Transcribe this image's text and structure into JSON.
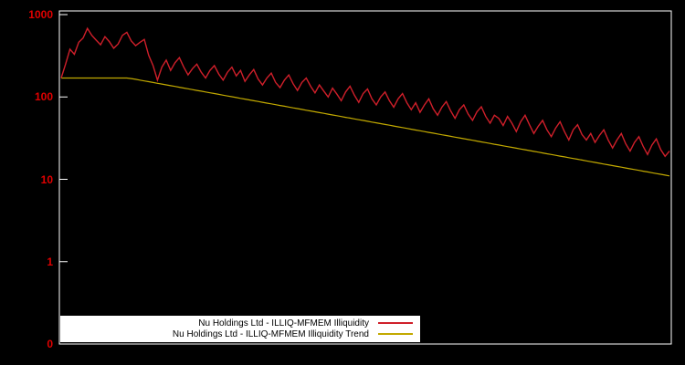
{
  "colors": {
    "background": "#000000",
    "plot_border": "#ffffff",
    "tick_text": "#e00000",
    "series_line": "#cf1f2a",
    "trend_line": "#c2a900",
    "legend_background": "#ffffff",
    "legend_text": "#000000"
  },
  "chart_data": {
    "type": "line",
    "title": "",
    "xlabel": "",
    "ylabel": "",
    "x_axis": {
      "tick_labels": []
    },
    "y_axis": {
      "scale": "log",
      "tick_labels": [
        "1000",
        "100",
        "10",
        "1",
        "0"
      ],
      "range_top": 1000,
      "range_bottom": 0.1
    },
    "grid": "off",
    "legend": {
      "position": "bottom-left",
      "entries": [
        {
          "label": "Nu Holdings Ltd - ILLIQ-MFMEM Illiquidity",
          "color": "#cf1f2a"
        },
        {
          "label": "Nu Holdings Ltd - ILLIQ-MFMEM Illiquidity Trend",
          "color": "#c2a900"
        }
      ]
    },
    "series": [
      {
        "name": "Nu Holdings Ltd - ILLIQ-MFMEM Illiquidity",
        "color": "#cf1f2a",
        "values": [
          170,
          250,
          380,
          330,
          460,
          520,
          680,
          560,
          490,
          430,
          540,
          470,
          390,
          440,
          560,
          610,
          480,
          420,
          460,
          500,
          320,
          240,
          160,
          230,
          280,
          210,
          260,
          300,
          230,
          185,
          220,
          250,
          200,
          170,
          210,
          240,
          190,
          160,
          200,
          230,
          180,
          210,
          155,
          185,
          215,
          165,
          140,
          170,
          195,
          150,
          130,
          160,
          185,
          145,
          120,
          150,
          170,
          135,
          112,
          140,
          118,
          100,
          128,
          108,
          90,
          115,
          135,
          105,
          86,
          110,
          125,
          95,
          80,
          100,
          115,
          90,
          75,
          95,
          110,
          85,
          70,
          85,
          65,
          80,
          95,
          72,
          60,
          75,
          88,
          68,
          55,
          70,
          80,
          62,
          52,
          66,
          76,
          58,
          48,
          60,
          55,
          45,
          58,
          48,
          38,
          50,
          60,
          46,
          36,
          44,
          52,
          40,
          33,
          42,
          50,
          38,
          30,
          40,
          46,
          35,
          30,
          36,
          28,
          34,
          40,
          30,
          24,
          30,
          36,
          27,
          22,
          28,
          33,
          25,
          20,
          26,
          31,
          23,
          19,
          22
        ]
      },
      {
        "name": "Nu Holdings Ltd - ILLIQ-MFMEM Illiquidity Trend",
        "color": "#c2a900",
        "trend_model": {
          "flat_value": 170,
          "flat_until_fraction": 0.11,
          "end_value": 11
        },
        "points": [
          [
            0,
            170
          ],
          [
            0.11,
            170
          ],
          [
            0.2,
            129
          ],
          [
            0.3,
            95
          ],
          [
            0.4,
            70
          ],
          [
            0.5,
            51
          ],
          [
            0.6,
            38
          ],
          [
            0.7,
            28
          ],
          [
            0.8,
            20.4
          ],
          [
            0.9,
            15
          ],
          [
            1.0,
            11
          ]
        ]
      }
    ]
  }
}
